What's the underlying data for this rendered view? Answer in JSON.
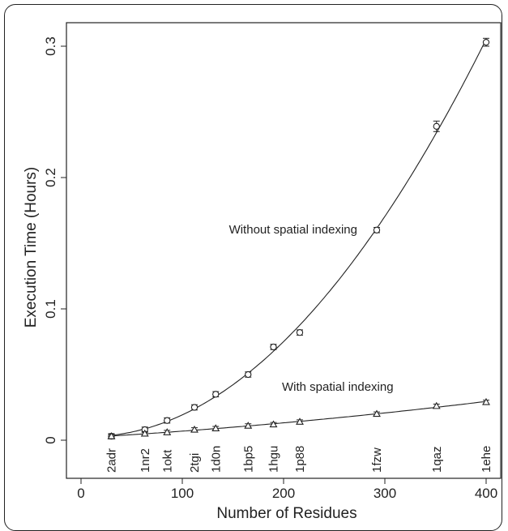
{
  "chart_data": {
    "type": "scatter",
    "xlabel": "Number of Residues",
    "ylabel": "Execution Time (Hours)",
    "xlim": [
      -5,
      410
    ],
    "ylim": [
      -0.005,
      0.31
    ],
    "x_ticks": [
      0,
      100,
      200,
      300,
      400
    ],
    "y_ticks": [
      0,
      0.1,
      0.2,
      0.3
    ],
    "x_tick_labels": [
      "0",
      "100",
      "200",
      "300",
      "400"
    ],
    "y_tick_labels": [
      "0",
      "0.1",
      "0.2",
      "0.3"
    ],
    "grid": false,
    "proteins": [
      {
        "id": "2adr",
        "x": 30
      },
      {
        "id": "1nr2",
        "x": 63
      },
      {
        "id": "1okt",
        "x": 85
      },
      {
        "id": "2tgi",
        "x": 112
      },
      {
        "id": "1d0n",
        "x": 133
      },
      {
        "id": "1bp5",
        "x": 165
      },
      {
        "id": "1hgu",
        "x": 190
      },
      {
        "id": "1p88",
        "x": 216
      },
      {
        "id": "1fzw",
        "x": 292
      },
      {
        "id": "1qaz",
        "x": 351
      },
      {
        "id": "1ehe",
        "x": 400
      }
    ],
    "series": [
      {
        "name": "Without spatial indexing",
        "marker": "circle",
        "x": [
          30,
          63,
          85,
          112,
          133,
          165,
          190,
          216,
          292,
          351,
          400
        ],
        "y": [
          0.003,
          0.008,
          0.015,
          0.025,
          0.035,
          0.05,
          0.071,
          0.082,
          0.16,
          0.239,
          0.303
        ],
        "err": [
          0.002,
          0.002,
          0.002,
          0.002,
          0.002,
          0.002,
          0.002,
          0.002,
          0.002,
          0.004,
          0.003
        ]
      },
      {
        "name": "With spatial indexing",
        "marker": "triangle",
        "x": [
          30,
          63,
          85,
          112,
          133,
          165,
          190,
          216,
          292,
          351,
          400
        ],
        "y": [
          0.003,
          0.005,
          0.006,
          0.008,
          0.009,
          0.011,
          0.012,
          0.014,
          0.02,
          0.026,
          0.029
        ],
        "err": [
          0.0015,
          0.0015,
          0.0015,
          0.0015,
          0.0015,
          0.0015,
          0.0015,
          0.0015,
          0.0015,
          0.0015,
          0.0015
        ]
      }
    ],
    "annotations": [
      {
        "text": "Without spatial indexing",
        "x": 262,
        "y": 0.16
      },
      {
        "text": "With spatial indexing",
        "x": 275,
        "y": 0.039
      }
    ]
  }
}
